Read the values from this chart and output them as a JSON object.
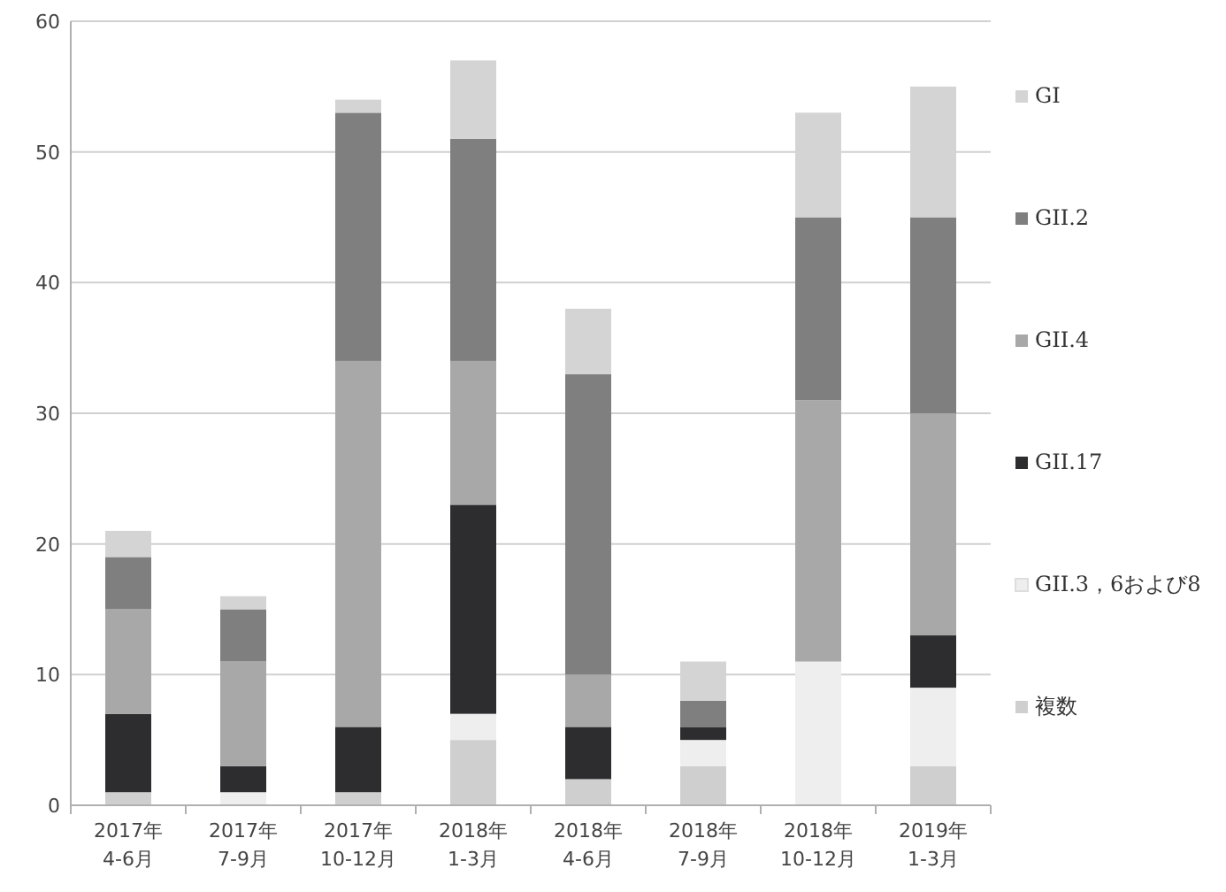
{
  "chart_data": {
    "type": "bar",
    "stacked": true,
    "categories": [
      "2017年\n4-6月",
      "2017年\n7-9月",
      "2017年\n10-12月",
      "2018年\n1-3月",
      "2018年\n4-6月",
      "2018年\n7-9月",
      "2018年\n10-12月",
      "2019年\n1-3月"
    ],
    "series": [
      {
        "name": "複数",
        "color": "#cfcfcf",
        "values": [
          1,
          0,
          1,
          5,
          2,
          3,
          0,
          3
        ]
      },
      {
        "name": "GII.3，6および8",
        "color": "#eeeeee",
        "values": [
          0,
          1,
          0,
          2,
          0,
          2,
          11,
          6
        ]
      },
      {
        "name": "GII.17",
        "color": "#2d2d30",
        "values": [
          6,
          2,
          5,
          16,
          4,
          1,
          0,
          4
        ]
      },
      {
        "name": "GII.4",
        "color": "#a8a8a8",
        "values": [
          8,
          8,
          28,
          11,
          4,
          0,
          20,
          17
        ]
      },
      {
        "name": "GII.2",
        "color": "#7f7f7f",
        "values": [
          4,
          4,
          19,
          17,
          23,
          2,
          14,
          15
        ]
      },
      {
        "name": "GI",
        "color": "#d4d4d4",
        "values": [
          2,
          1,
          1,
          6,
          5,
          3,
          8,
          10
        ]
      }
    ],
    "ylim": [
      0,
      60
    ],
    "yticks": [
      0,
      10,
      20,
      30,
      40,
      50,
      60
    ],
    "grid": "y",
    "legend": "right"
  }
}
